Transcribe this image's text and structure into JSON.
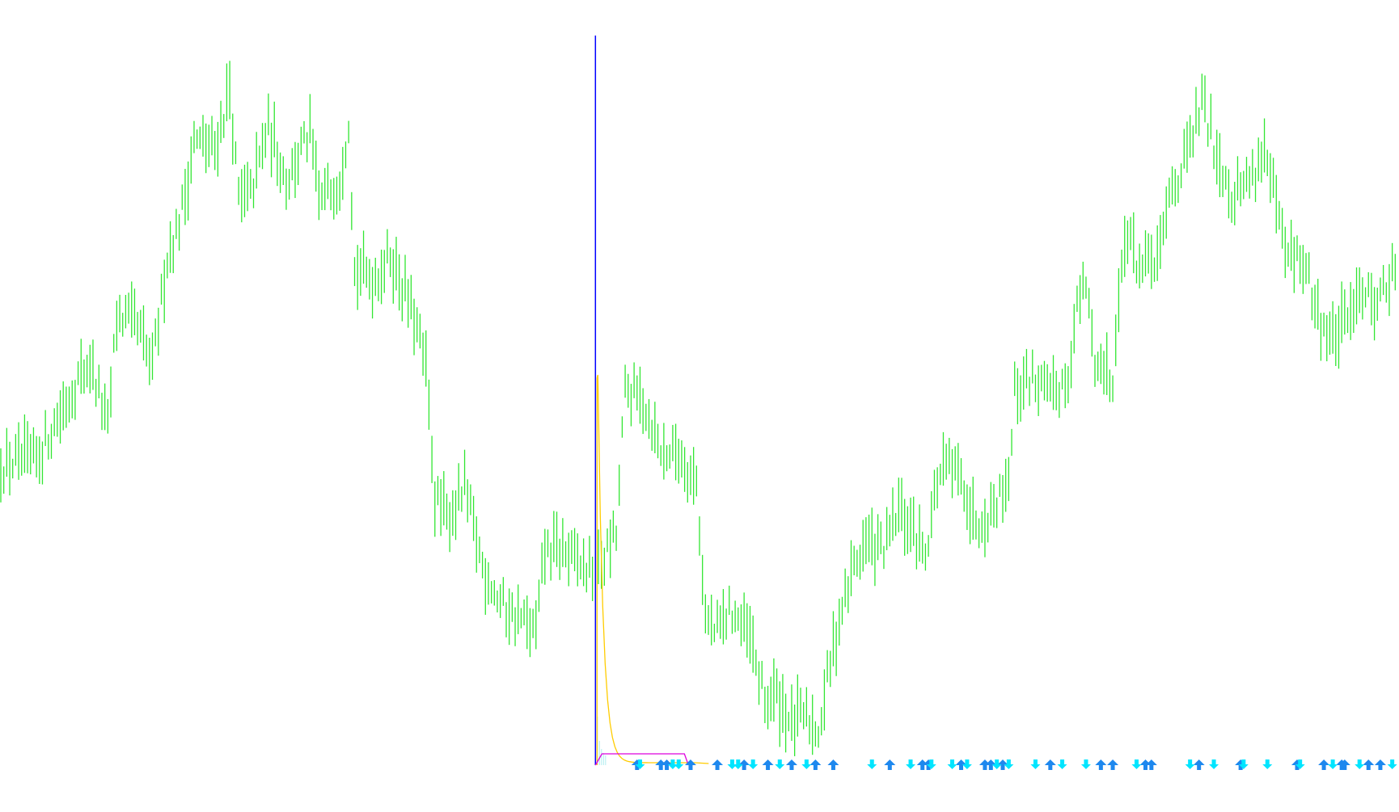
{
  "chart_data": {
    "type": "bar",
    "style": "ohlc-bars",
    "title": "",
    "xlabel": "",
    "ylabel": "",
    "grid": false,
    "background": "#ffffff",
    "bar_count": 470,
    "ylim": [
      0,
      100
    ],
    "colors": {
      "bars": "#32e632",
      "vertical_marker": "#0000ff",
      "indicator_decay": "#ffcc00",
      "indicator_step": "#dd00dd",
      "arrow_up": "#1e88ee",
      "arrow_down": "#00e5ff",
      "histogram": "#b0ecf0"
    },
    "price_path": [
      [
        0,
        43
      ],
      [
        12,
        44
      ],
      [
        24,
        53
      ],
      [
        30,
        57
      ],
      [
        36,
        48
      ],
      [
        39,
        63
      ],
      [
        45,
        62
      ],
      [
        51,
        56
      ],
      [
        56,
        71
      ],
      [
        60,
        75
      ],
      [
        65,
        86
      ],
      [
        72,
        85
      ],
      [
        77,
        93
      ],
      [
        80,
        78
      ],
      [
        84,
        79
      ],
      [
        90,
        88
      ],
      [
        96,
        81
      ],
      [
        104,
        87
      ],
      [
        107,
        78
      ],
      [
        114,
        81
      ],
      [
        117,
        89
      ],
      [
        119,
        69
      ],
      [
        126,
        68
      ],
      [
        131,
        71
      ],
      [
        138,
        64
      ],
      [
        143,
        56
      ],
      [
        146,
        39
      ],
      [
        150,
        36
      ],
      [
        156,
        40
      ],
      [
        162,
        30
      ],
      [
        168,
        25
      ],
      [
        174,
        23
      ],
      [
        180,
        21
      ],
      [
        183,
        32
      ],
      [
        189,
        32
      ],
      [
        195,
        30
      ],
      [
        200,
        29
      ],
      [
        207,
        34
      ],
      [
        210,
        53
      ],
      [
        216,
        52
      ],
      [
        222,
        45
      ],
      [
        228,
        45
      ],
      [
        234,
        41
      ],
      [
        237,
        23
      ],
      [
        240,
        21
      ],
      [
        246,
        24
      ],
      [
        252,
        20
      ],
      [
        257,
        12
      ],
      [
        261,
        13
      ],
      [
        266,
        9
      ],
      [
        270,
        10
      ],
      [
        275,
        8
      ],
      [
        278,
        15
      ],
      [
        282,
        23
      ],
      [
        287,
        30
      ],
      [
        291,
        33
      ],
      [
        297,
        32
      ],
      [
        302,
        37
      ],
      [
        306,
        35
      ],
      [
        311,
        32
      ],
      [
        315,
        41
      ],
      [
        318,
        43
      ],
      [
        324,
        41
      ],
      [
        327,
        36
      ],
      [
        333,
        37
      ],
      [
        339,
        42
      ],
      [
        341,
        53
      ],
      [
        347,
        55
      ],
      [
        353,
        52
      ],
      [
        359,
        55
      ],
      [
        362,
        64
      ],
      [
        365,
        67
      ],
      [
        368,
        57
      ],
      [
        374,
        55
      ],
      [
        378,
        74
      ],
      [
        384,
        69
      ],
      [
        390,
        71
      ],
      [
        393,
        79
      ],
      [
        399,
        84
      ],
      [
        404,
        91
      ],
      [
        408,
        86
      ],
      [
        414,
        79
      ],
      [
        420,
        81
      ],
      [
        425,
        85
      ],
      [
        429,
        77
      ],
      [
        432,
        71
      ],
      [
        438,
        70
      ],
      [
        443,
        63
      ],
      [
        447,
        60
      ],
      [
        453,
        62
      ],
      [
        456,
        67
      ],
      [
        462,
        65
      ],
      [
        468,
        68
      ]
    ],
    "vertical_marker_bar": 200,
    "signals": {
      "up_bars": [
        214,
        222,
        224,
        232,
        241,
        250,
        258,
        266,
        274,
        280,
        299,
        310,
        312,
        323,
        331,
        333,
        337,
        353,
        370,
        374,
        385,
        387,
        403,
        417,
        436,
        445,
        451,
        452,
        460,
        464
      ],
      "down_bars": [
        215,
        226,
        228,
        246,
        248,
        253,
        262,
        271,
        293,
        306,
        313,
        320,
        325,
        335,
        339,
        348,
        357,
        365,
        382,
        400,
        408,
        418,
        426,
        437,
        448,
        457,
        468
      ]
    }
  }
}
